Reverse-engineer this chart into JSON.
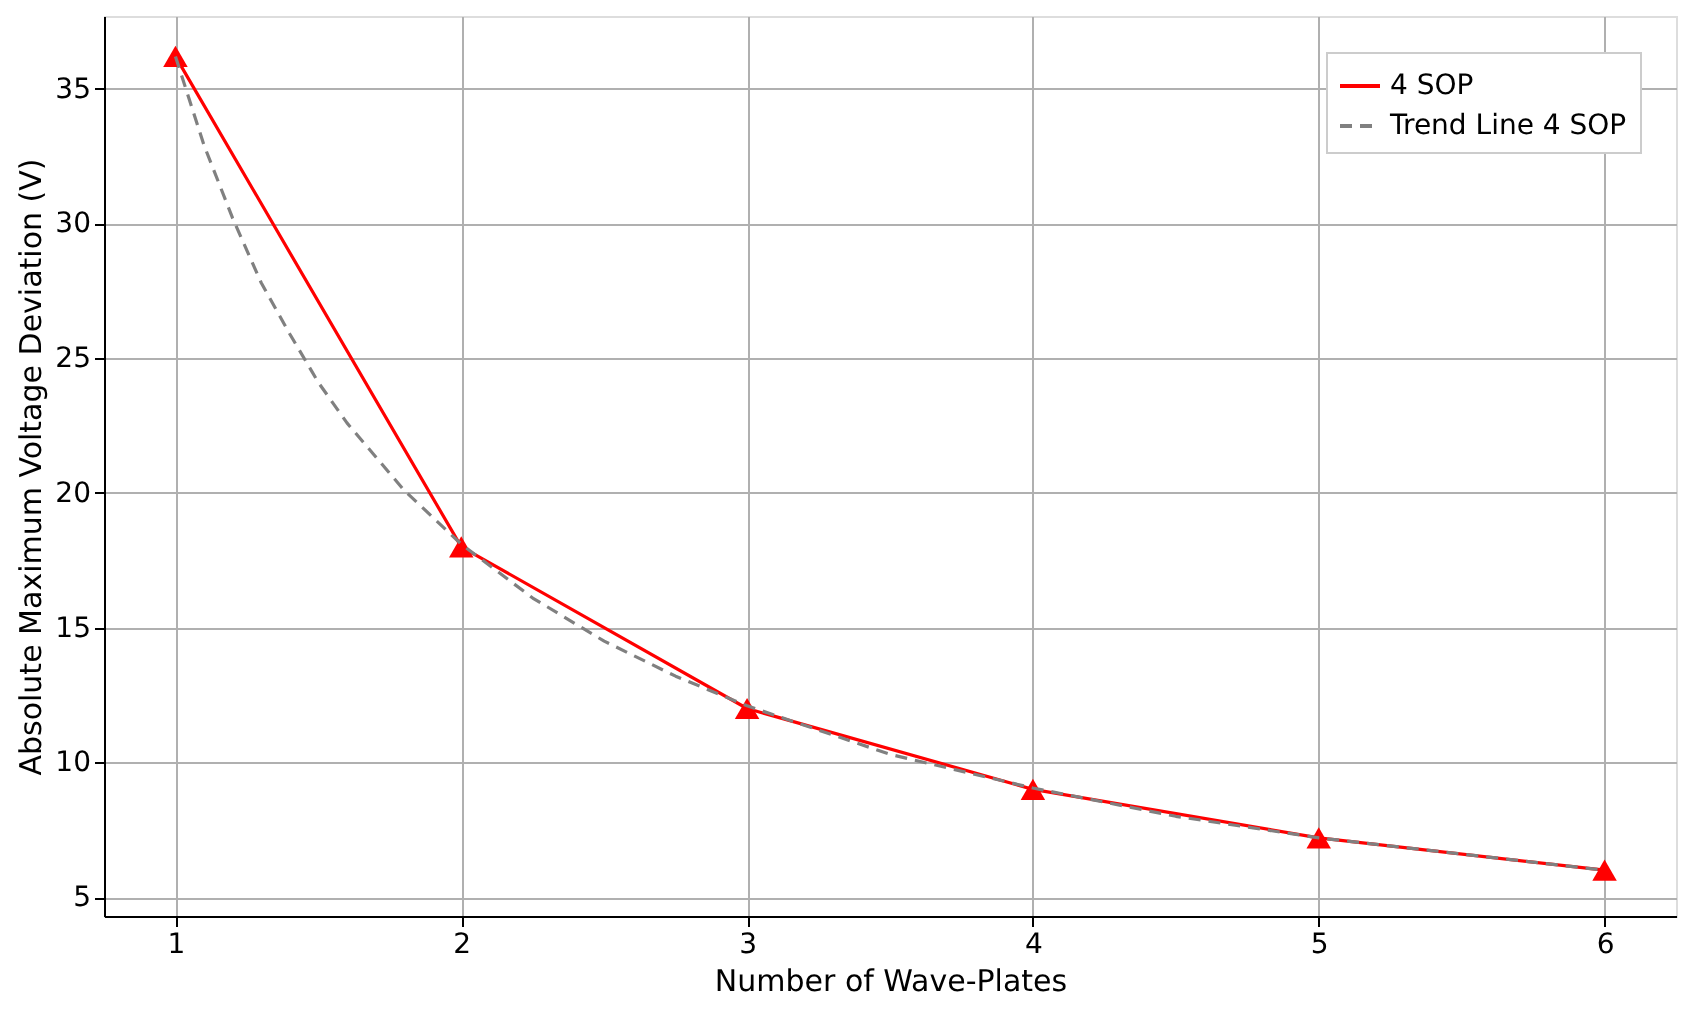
{
  "chart_data": {
    "type": "line",
    "xlabel": "Number of Wave-Plates",
    "ylabel": "Absolute Maximum Voltage Deviation (V)",
    "xlim": [
      0.75,
      6.25
    ],
    "xticks": [
      1,
      2,
      3,
      4,
      5,
      6
    ],
    "ylim": [
      4.3,
      37.7
    ],
    "yticks": [
      5,
      10,
      15,
      20,
      25,
      30,
      35
    ],
    "grid": true,
    "legend": "top right",
    "series": [
      {
        "name": "4 SOP",
        "color": "#ff0000",
        "marker": "triangle",
        "line_style": "solid",
        "x": [
          1,
          2,
          3,
          4,
          5,
          6
        ],
        "values": [
          36.2,
          18.0,
          12.0,
          9.0,
          7.2,
          6.0
        ]
      },
      {
        "name": "Trend Line 4 SOP",
        "color": "#808080",
        "marker": "none",
        "line_style": "dashed",
        "x": [
          1,
          1.1,
          1.2,
          1.3,
          1.4,
          1.5,
          1.6,
          1.8,
          2,
          2.25,
          2.5,
          2.75,
          3,
          3.5,
          4,
          4.5,
          5,
          5.5,
          6
        ],
        "values": [
          36.2,
          32.9,
          30.2,
          27.8,
          25.9,
          24.1,
          22.6,
          20.1,
          18.1,
          16.1,
          14.5,
          13.2,
          12.1,
          10.3,
          9.05,
          8.0,
          7.2,
          6.6,
          6.0
        ]
      }
    ]
  }
}
